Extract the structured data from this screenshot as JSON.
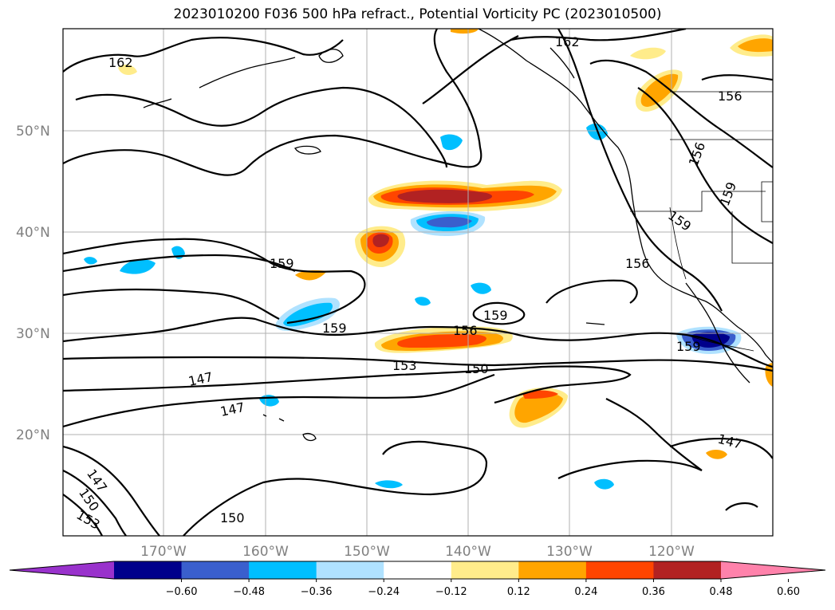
{
  "title": "2023010200 F036 500 hPa refract., Potential Vorticity PC (2023010500)",
  "lat_labels": [
    "50°N",
    "40°N",
    "30°N",
    "20°N"
  ],
  "lon_labels": [
    "170°W",
    "160°W",
    "150°W",
    "140°W",
    "130°W",
    "120°W"
  ],
  "contour_labels": [
    "162",
    "162",
    "156",
    "156",
    "159",
    "159",
    "156",
    "159",
    "159",
    "159",
    "156",
    "159",
    "156",
    "153",
    "150",
    "147",
    "147",
    "147",
    "150",
    "153",
    "150",
    "159",
    "147"
  ],
  "colorbar": {
    "ticks": [
      "−0.60",
      "−0.48",
      "−0.36",
      "−0.24",
      "−0.12",
      "0.12",
      "0.24",
      "0.36",
      "0.48",
      "0.60"
    ],
    "colors": [
      "#9932cc",
      "#00008b",
      "#3a5fcd",
      "#00bfff",
      "#b0e2ff",
      "#ffffff",
      "#ffec8b",
      "#ffa500",
      "#ff4500",
      "#b22222",
      "#ff82ab"
    ]
  },
  "colors": {
    "frame": "#000000",
    "grid": "#b0b0b0",
    "contour": "#000000"
  }
}
